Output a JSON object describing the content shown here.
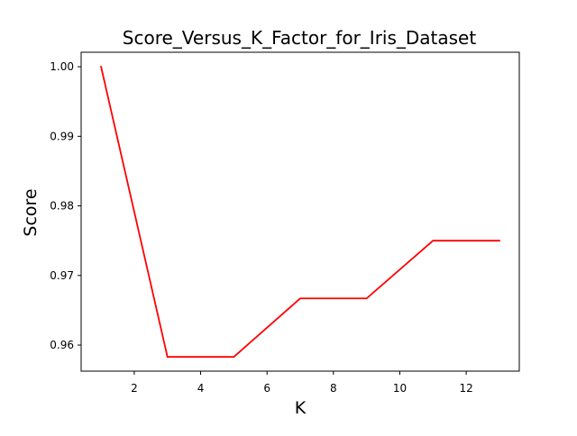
{
  "chart_data": {
    "type": "line",
    "title": "Score_Versus_K_Factor_for_Iris_Dataset",
    "xlabel": "K",
    "ylabel": "Score",
    "xlim": [
      0.4,
      13.6
    ],
    "ylim": [
      0.95625,
      1.00208
    ],
    "xticks": [
      2,
      4,
      6,
      8,
      10,
      12
    ],
    "yticks": [
      0.96,
      0.97,
      0.98,
      0.99,
      1.0
    ],
    "ytick_labels": [
      "0.96",
      "0.97",
      "0.98",
      "0.99",
      "1.00"
    ],
    "grid": false,
    "legend": "none",
    "series": [
      {
        "color": "#ff0000",
        "x": [
          1,
          3,
          5,
          7,
          9,
          11,
          13
        ],
        "y": [
          1.0,
          0.9583,
          0.9583,
          0.9667,
          0.9667,
          0.975,
          0.975
        ]
      }
    ]
  }
}
